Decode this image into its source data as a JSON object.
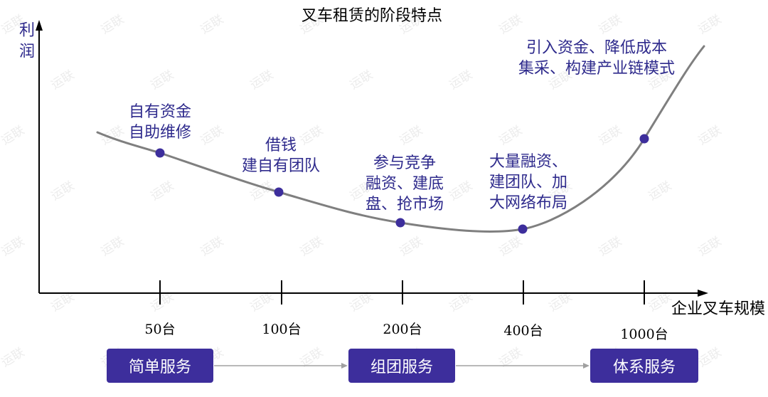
{
  "title": "叉车租赁的阶段特点",
  "y_axis": {
    "label": "利润"
  },
  "x_axis": {
    "label": "企业叉车规模",
    "ticks": [
      "50台",
      "100台",
      "200台",
      "400台",
      "1000台"
    ]
  },
  "stages": [
    {
      "lines": [
        "自有资金",
        "自助维修"
      ]
    },
    {
      "lines": [
        "借钱",
        "建自有团队"
      ]
    },
    {
      "lines": [
        "参与竞争",
        "融资、建底",
        "盘、抢市场"
      ]
    },
    {
      "lines": [
        "大量融资、",
        "建团队、加",
        "大网络布局"
      ]
    },
    {
      "lines": [
        "引入资金、降低成本",
        "集采、构建产业链模式"
      ]
    }
  ],
  "service_levels": [
    "简单服务",
    "组团服务",
    "体系服务"
  ],
  "watermark": "运联",
  "colors": {
    "accent": "#3d2e9c",
    "annotation_text": "#2e2a8c",
    "curve": "#7f7f7f",
    "connector": "#a0a0a0",
    "watermark": "#ececec"
  }
}
